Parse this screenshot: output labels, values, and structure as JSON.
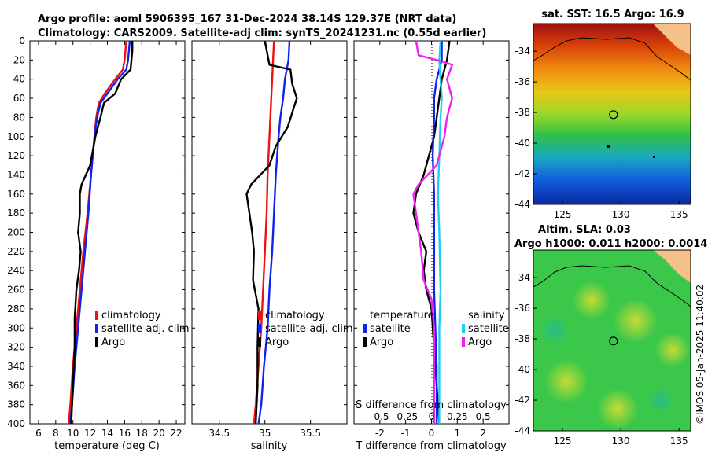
{
  "titles": {
    "line1": "Argo profile: aoml 5906395_167 31-Dec-2024 38.14S 129.37E (NRT data)",
    "line2": "Climatology: CARS2009. Satellite-adj clim: synTS_20241231.nc (0.55d earlier)",
    "sst_map": "sat. SST: 16.5 Argo: 16.9",
    "sla_line1": "Altim. SLA: 0.03",
    "sla_line2": "Argo h1000: 0.011 h2000: 0.0014"
  },
  "watermark": "©IMOS 05-Jan-2025 11:40:02",
  "legend": {
    "climatology": "climatology",
    "satellite_adj": "satellite-adj. clim",
    "argo": "Argo",
    "temperature": "temperature",
    "salinity": "salinity",
    "satellite": "satellite",
    "s_diff_title": "S difference from climatology"
  },
  "colors": {
    "climatology": "#ee1111",
    "satellite": "#1122ee",
    "argo": "#000000",
    "sal_sat": "#22ccee",
    "sal_argo": "#ee22ee"
  },
  "chart_data": [
    {
      "type": "line",
      "id": "temperature",
      "xlabel": "temperature (deg C)",
      "ylabel": "",
      "xlim": [
        5,
        23
      ],
      "ylim": [
        400,
        0
      ],
      "xticks": [
        6,
        8,
        10,
        12,
        14,
        16,
        18,
        20,
        22
      ],
      "yticks": [
        0,
        20,
        40,
        60,
        80,
        100,
        120,
        140,
        160,
        180,
        200,
        220,
        240,
        260,
        280,
        300,
        320,
        340,
        360,
        380,
        400
      ],
      "series": [
        {
          "name": "climatology",
          "color_key": "climatology",
          "points": [
            [
              16.2,
              0
            ],
            [
              16.0,
              20
            ],
            [
              15.8,
              30
            ],
            [
              14.9,
              40
            ],
            [
              13.7,
              55
            ],
            [
              13.0,
              65
            ],
            [
              12.7,
              80
            ],
            [
              12.5,
              100
            ],
            [
              12.1,
              140
            ],
            [
              11.7,
              180
            ],
            [
              11.2,
              220
            ],
            [
              10.8,
              260
            ],
            [
              10.4,
              300
            ],
            [
              10.0,
              340
            ],
            [
              9.7,
              380
            ],
            [
              9.5,
              400
            ]
          ]
        },
        {
          "name": "satellite-adj. clim",
          "color_key": "satellite",
          "points": [
            [
              16.6,
              0
            ],
            [
              16.4,
              20
            ],
            [
              16.2,
              30
            ],
            [
              15.2,
              40
            ],
            [
              14.0,
              55
            ],
            [
              13.2,
              65
            ],
            [
              12.8,
              80
            ],
            [
              12.5,
              100
            ],
            [
              12.1,
              140
            ],
            [
              11.8,
              180
            ],
            [
              11.4,
              220
            ],
            [
              11.0,
              260
            ],
            [
              10.6,
              300
            ],
            [
              10.2,
              340
            ],
            [
              9.9,
              380
            ],
            [
              9.7,
              400
            ]
          ]
        },
        {
          "name": "Argo",
          "color_key": "argo",
          "points": [
            [
              16.9,
              0
            ],
            [
              16.9,
              10
            ],
            [
              16.8,
              20
            ],
            [
              16.7,
              30
            ],
            [
              15.6,
              40
            ],
            [
              14.9,
              55
            ],
            [
              13.6,
              65
            ],
            [
              13.2,
              80
            ],
            [
              12.6,
              100
            ],
            [
              12.0,
              130
            ],
            [
              11.0,
              150
            ],
            [
              10.8,
              160
            ],
            [
              10.8,
              180
            ],
            [
              10.6,
              200
            ],
            [
              10.9,
              220
            ],
            [
              10.7,
              240
            ],
            [
              10.4,
              260
            ],
            [
              10.2,
              290
            ],
            [
              10.2,
              320
            ],
            [
              10.0,
              360
            ],
            [
              9.8,
              400
            ]
          ]
        }
      ]
    },
    {
      "type": "line",
      "id": "salinity",
      "xlabel": "salinity",
      "ylabel": "",
      "xlim": [
        34.2,
        35.9
      ],
      "ylim": [
        400,
        0
      ],
      "xticks": [
        34.5,
        35,
        35.5
      ],
      "series": [
        {
          "name": "climatology",
          "color_key": "climatology",
          "points": [
            [
              35.1,
              0
            ],
            [
              35.09,
              20
            ],
            [
              35.08,
              40
            ],
            [
              35.07,
              60
            ],
            [
              35.06,
              80
            ],
            [
              35.05,
              100
            ],
            [
              35.03,
              140
            ],
            [
              35.02,
              180
            ],
            [
              35.0,
              220
            ],
            [
              34.98,
              260
            ],
            [
              34.96,
              300
            ],
            [
              34.93,
              340
            ],
            [
              34.9,
              380
            ],
            [
              34.88,
              400
            ]
          ]
        },
        {
          "name": "satellite-adj. clim",
          "color_key": "satellite",
          "points": [
            [
              35.27,
              0
            ],
            [
              35.26,
              20
            ],
            [
              35.22,
              40
            ],
            [
              35.2,
              60
            ],
            [
              35.17,
              80
            ],
            [
              35.15,
              100
            ],
            [
              35.12,
              140
            ],
            [
              35.1,
              180
            ],
            [
              35.08,
              220
            ],
            [
              35.05,
              260
            ],
            [
              35.03,
              300
            ],
            [
              34.99,
              340
            ],
            [
              34.96,
              380
            ],
            [
              34.93,
              400
            ]
          ]
        },
        {
          "name": "Argo",
          "color_key": "argo",
          "points": [
            [
              35.0,
              0
            ],
            [
              35.02,
              10
            ],
            [
              35.05,
              25
            ],
            [
              35.28,
              30
            ],
            [
              35.3,
              45
            ],
            [
              35.35,
              60
            ],
            [
              35.3,
              75
            ],
            [
              35.25,
              90
            ],
            [
              35.12,
              110
            ],
            [
              35.05,
              130
            ],
            [
              34.85,
              150
            ],
            [
              34.8,
              160
            ],
            [
              34.83,
              180
            ],
            [
              34.86,
              200
            ],
            [
              34.88,
              220
            ],
            [
              34.87,
              250
            ],
            [
              34.93,
              280
            ],
            [
              34.92,
              320
            ],
            [
              34.92,
              360
            ],
            [
              34.9,
              400
            ]
          ]
        }
      ]
    },
    {
      "type": "line",
      "id": "differences",
      "xlabel": "T difference from climatology",
      "ylabel": "",
      "xlim": [
        -3,
        3
      ],
      "ylim": [
        400,
        0
      ],
      "xticks": [
        -2,
        -1,
        0,
        1,
        2
      ],
      "xtick_labels": [
        "-2",
        "-1",
        "0",
        "1",
        "2"
      ],
      "secondary_xticks": [
        -0.5,
        -0.25,
        0,
        0.25,
        0.5
      ],
      "secondary_xtick_labels": [
        "-0.5",
        "-0.25",
        "0",
        "0.25",
        "0.5"
      ],
      "series": [
        {
          "name": "temperature Argo",
          "color_key": "argo",
          "points": [
            [
              0.7,
              0
            ],
            [
              0.6,
              20
            ],
            [
              0.4,
              40
            ],
            [
              0.3,
              60
            ],
            [
              0.2,
              80
            ],
            [
              0.1,
              100
            ],
            [
              -0.3,
              140
            ],
            [
              -0.6,
              160
            ],
            [
              -0.7,
              180
            ],
            [
              -0.5,
              200
            ],
            [
              -0.2,
              220
            ],
            [
              -0.3,
              240
            ],
            [
              -0.2,
              260
            ],
            [
              0.0,
              280
            ],
            [
              0.1,
              320
            ],
            [
              0.2,
              360
            ],
            [
              0.3,
              400
            ]
          ]
        },
        {
          "name": "temperature satellite",
          "color_key": "satellite",
          "points": [
            [
              0.4,
              0
            ],
            [
              0.4,
              20
            ],
            [
              0.2,
              40
            ],
            [
              0.1,
              60
            ],
            [
              0.1,
              80
            ],
            [
              0.05,
              120
            ],
            [
              0.1,
              160
            ],
            [
              0.1,
              200
            ],
            [
              0.1,
              260
            ],
            [
              0.15,
              300
            ],
            [
              0.2,
              340
            ],
            [
              0.2,
              400
            ]
          ]
        },
        {
          "name": "salinity satellite",
          "color_key": "sal_sat",
          "points": [
            [
              0.35,
              0
            ],
            [
              0.3,
              20
            ],
            [
              0.35,
              40
            ],
            [
              0.4,
              60
            ],
            [
              0.35,
              80
            ],
            [
              0.3,
              120
            ],
            [
              0.25,
              160
            ],
            [
              0.3,
              200
            ],
            [
              0.35,
              260
            ],
            [
              0.3,
              300
            ],
            [
              0.3,
              340
            ],
            [
              0.3,
              400
            ]
          ]
        },
        {
          "name": "salinity Argo",
          "color_key": "sal_argo",
          "points": [
            [
              -0.6,
              0
            ],
            [
              -0.5,
              15
            ],
            [
              0.2,
              20
            ],
            [
              0.8,
              25
            ],
            [
              0.6,
              40
            ],
            [
              0.8,
              60
            ],
            [
              0.6,
              80
            ],
            [
              0.5,
              100
            ],
            [
              0.2,
              130
            ],
            [
              -0.5,
              150
            ],
            [
              -0.7,
              160
            ],
            [
              -0.6,
              180
            ],
            [
              -0.5,
              200
            ],
            [
              -0.4,
              220
            ],
            [
              -0.3,
              250
            ],
            [
              0.0,
              270
            ],
            [
              0.1,
              300
            ],
            [
              0.1,
              340
            ],
            [
              0.1,
              400
            ]
          ]
        }
      ]
    },
    {
      "type": "heatmap",
      "id": "sst_map",
      "title": "sat. SST: 16.5 Argo: 16.9",
      "xlim": [
        122.5,
        136
      ],
      "ylim": [
        -44,
        -32.2
      ],
      "xticks": [
        125,
        130,
        135
      ],
      "yticks": [
        -34,
        -36,
        -38,
        -40,
        -42,
        -44
      ],
      "marker": {
        "lon": 129.37,
        "lat": -38.14
      }
    },
    {
      "type": "heatmap",
      "id": "sla_map",
      "title": "Altim. SLA: 0.03",
      "xlim": [
        122.5,
        136
      ],
      "ylim": [
        -44,
        -32.2
      ],
      "xticks": [
        125,
        130,
        135
      ],
      "yticks": [
        -34,
        -36,
        -38,
        -40,
        -42,
        -44
      ],
      "marker": {
        "lon": 129.37,
        "lat": -38.14
      }
    }
  ]
}
